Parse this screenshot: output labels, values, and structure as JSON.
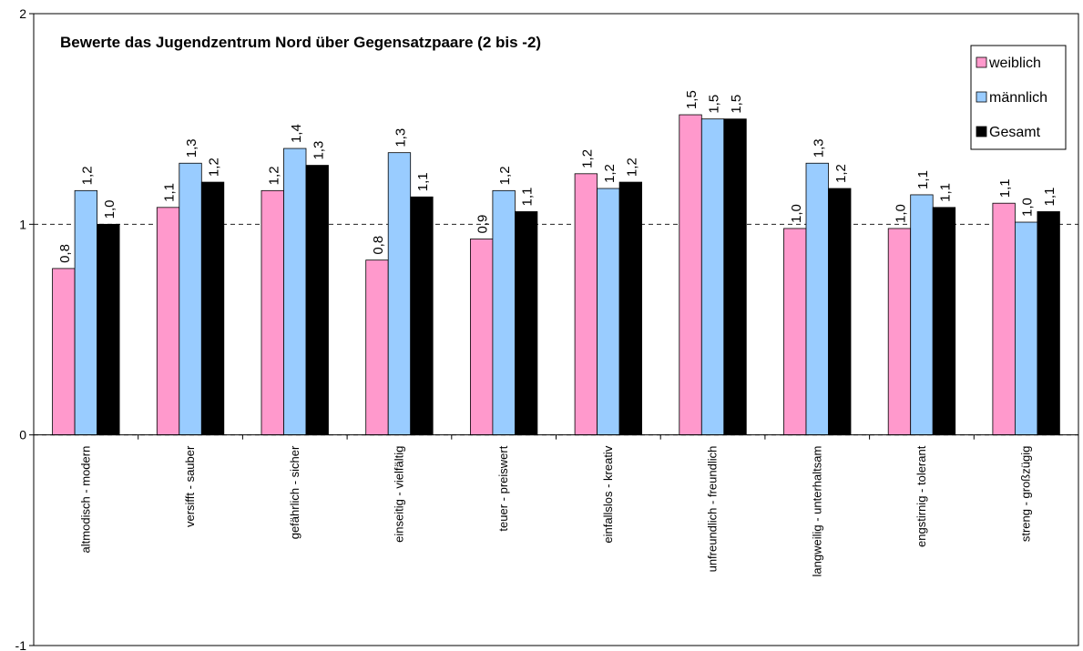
{
  "chart_data": {
    "type": "bar",
    "title": "Bewerte das Jugendzentrum Nord über Gegensatzpaare (2 bis -2)",
    "categories": [
      "altmodisch - modern",
      "versifft - sauber",
      "gefährlich - sicher",
      "einseitig - vielfältig",
      "teuer - preiswert",
      "einfallslos - kreativ",
      "unfreundlich - freundlich",
      "langweilig - unterhaltsam",
      "engstirnig - tolerant",
      "streng - großzügig"
    ],
    "series": [
      {
        "name": "weiblich",
        "color": "#ff99cc",
        "values": [
          0.79,
          1.08,
          1.16,
          0.83,
          0.93,
          1.24,
          1.52,
          0.98,
          0.98,
          1.1
        ],
        "value_labels": [
          "0,8",
          "1,1",
          "1,2",
          "0,8",
          "0,9",
          "1,2",
          "1,5",
          "1,0",
          "1,0",
          "1,1"
        ]
      },
      {
        "name": "männlich",
        "color": "#99ccff",
        "values": [
          1.16,
          1.29,
          1.36,
          1.34,
          1.16,
          1.17,
          1.5,
          1.29,
          1.14,
          1.01
        ],
        "value_labels": [
          "1,2",
          "1,3",
          "1,4",
          "1,3",
          "1,2",
          "1,2",
          "1,5",
          "1,3",
          "1,1",
          "1,0"
        ]
      },
      {
        "name": "Gesamt",
        "color": "#000000",
        "values": [
          1.0,
          1.2,
          1.28,
          1.13,
          1.06,
          1.2,
          1.5,
          1.17,
          1.08,
          1.06
        ],
        "value_labels": [
          "1,0",
          "1,2",
          "1,3",
          "1,1",
          "1,1",
          "1,2",
          "1,5",
          "1,2",
          "1,1",
          "1,1"
        ]
      }
    ],
    "ylim": [
      -1,
      2
    ],
    "yticks": [
      -1,
      0,
      1,
      2
    ],
    "grid": true,
    "legend": "top-right"
  }
}
